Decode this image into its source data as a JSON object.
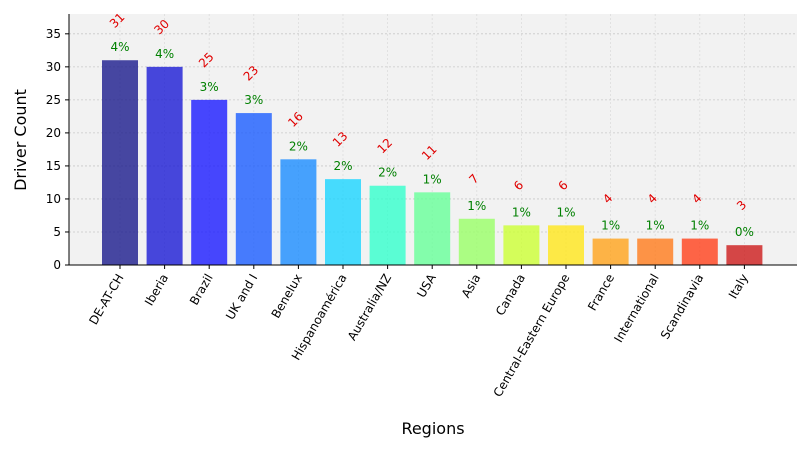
{
  "chart_data": {
    "type": "bar",
    "title": "",
    "xlabel": "Regions",
    "ylabel": "Driver Count",
    "ylim": [
      0,
      38
    ],
    "yticks": [
      0,
      5,
      10,
      15,
      20,
      25,
      30,
      35
    ],
    "grid": true,
    "categories": [
      "DE-AT-CH",
      "Iberia",
      "Brazil",
      "UK and I",
      "Benelux",
      "Hispanoamérica",
      "Australia/NZ",
      "USA",
      "Asia",
      "Canada",
      "Central-Eastern Europe",
      "France",
      "International",
      "Scandinavia",
      "Italy"
    ],
    "values": [
      31,
      30,
      25,
      23,
      16,
      13,
      12,
      11,
      7,
      6,
      6,
      4,
      4,
      4,
      3
    ],
    "count_labels": [
      "31",
      "30",
      "25",
      "23",
      "16",
      "13",
      "12",
      "11",
      "7",
      "6",
      "6",
      "4",
      "4",
      "4",
      "3"
    ],
    "percent_labels": [
      "4%",
      "4%",
      "3%",
      "3%",
      "2%",
      "2%",
      "2%",
      "1%",
      "1%",
      "1%",
      "1%",
      "1%",
      "1%",
      "1%",
      "0%"
    ],
    "colors": [
      "#1a1a8c",
      "#1a1ad4",
      "#1a1aff",
      "#1a5cff",
      "#1a8cff",
      "#1ad4ff",
      "#33ffcc",
      "#66ff99",
      "#99ff66",
      "#ccff33",
      "#ffe61a",
      "#ffa31a",
      "#ff7a1a",
      "#ff401a",
      "#cc1a1a"
    ]
  }
}
